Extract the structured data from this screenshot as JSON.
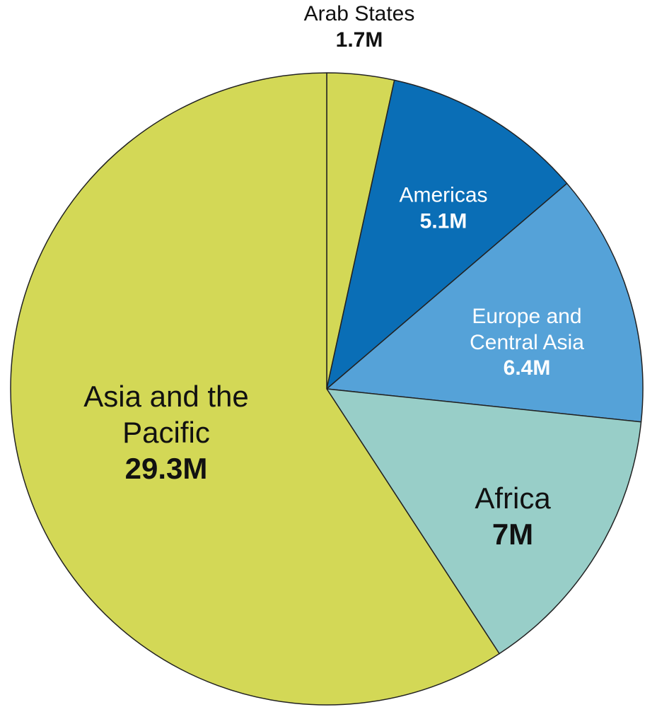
{
  "chart_data": {
    "type": "pie",
    "categories": [
      "Arab States",
      "Americas",
      "Europe and Central Asia",
      "Africa",
      "Asia and the Pacific"
    ],
    "values": [
      1.7,
      5.1,
      6.4,
      7,
      29.3
    ],
    "value_labels": [
      "1.7M",
      "5.1M",
      "6.4M",
      "7M",
      "29.3M"
    ],
    "colors": [
      "#d3d856",
      "#0a6eb6",
      "#55a2d8",
      "#98cec8",
      "#d3d856"
    ]
  }
}
